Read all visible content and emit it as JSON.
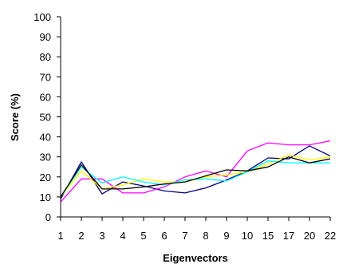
{
  "chart_data": {
    "type": "line",
    "title": "",
    "xlabel": "Eigenvectors",
    "ylabel": "Score (%)",
    "categories": [
      "1",
      "2",
      "3",
      "4",
      "5",
      "6",
      "7",
      "8",
      "9",
      "10",
      "15",
      "17",
      "20",
      "22"
    ],
    "ylim": [
      0,
      100
    ],
    "yticks": [
      "0",
      "10",
      "20",
      "30",
      "40",
      "50",
      "60",
      "70",
      "80",
      "90",
      "100"
    ],
    "grid": false,
    "legend": "none",
    "series": [
      {
        "color": "#000080",
        "values": [
          9,
          27.5,
          11.5,
          17.5,
          15.5,
          13,
          12,
          14.5,
          18.5,
          23,
          29.5,
          29,
          35.5,
          30.5
        ]
      },
      {
        "color": "#FF00FF",
        "values": [
          7.5,
          19,
          19,
          12,
          12,
          15,
          20,
          23,
          20,
          33,
          37,
          36,
          36,
          38
        ]
      },
      {
        "color": "#FFFF00",
        "values": [
          10,
          23,
          14,
          16,
          19,
          17.5,
          17.5,
          20,
          21,
          22.5,
          26.5,
          31,
          28.5,
          30
        ]
      },
      {
        "color": "#00FFFF",
        "values": [
          10,
          25,
          17,
          20,
          17.5,
          16,
          18.5,
          19,
          18,
          22.5,
          28,
          27,
          27,
          27
        ]
      },
      {
        "color": "#000000",
        "values": [
          10,
          26,
          14,
          14,
          15,
          16.5,
          17.5,
          20.5,
          23.5,
          23,
          25,
          30,
          27,
          29
        ]
      }
    ]
  }
}
